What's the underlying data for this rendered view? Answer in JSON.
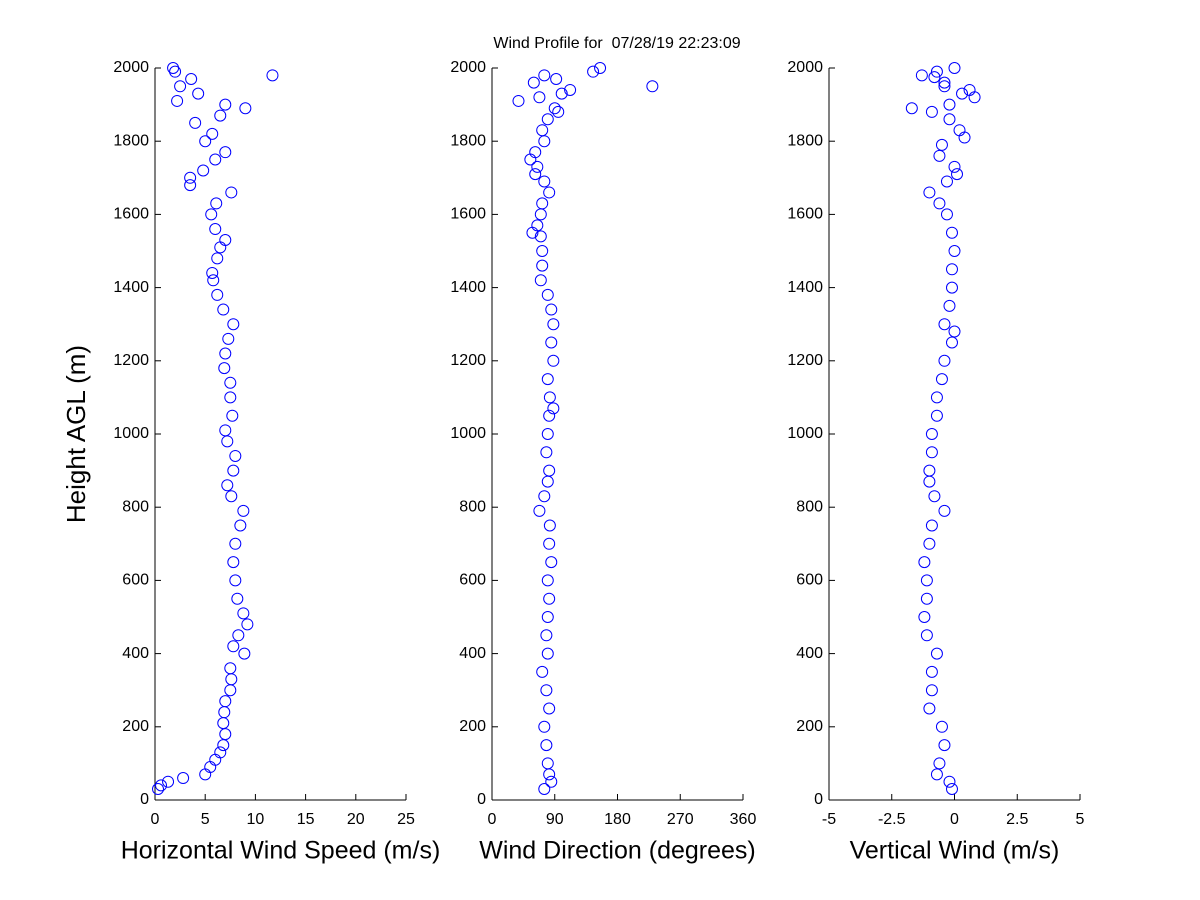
{
  "chart_data": [
    {
      "type": "scatter",
      "xlabel": "Horizontal Wind Speed (m/s)",
      "ylabel": "Height AGL (m)",
      "color": "#0000ff",
      "xlim": [
        0,
        25
      ],
      "xticks": [
        0,
        5,
        10,
        15,
        20,
        25
      ],
      "ylim": [
        0,
        2000
      ],
      "yticks": [
        0,
        200,
        400,
        600,
        800,
        1000,
        1200,
        1400,
        1600,
        1800,
        2000
      ],
      "x": [
        0.3,
        0.6,
        1.3,
        2.8,
        5,
        5.5,
        6,
        6.5,
        6.8,
        7,
        6.8,
        6.9,
        7,
        7.5,
        7.6,
        7.5,
        8.9,
        7.8,
        8.3,
        9.2,
        8.8,
        8.2,
        8,
        7.8,
        8,
        8.5,
        8.8,
        7.6,
        7.2,
        7.8,
        8,
        7.2,
        7,
        7.7,
        7.5,
        7.5,
        6.9,
        7,
        7.3,
        7.8,
        6.8,
        6.2,
        5.8,
        5.7,
        6.2,
        6.5,
        7,
        6,
        5.6,
        6.1,
        7.6,
        3.5,
        3.5,
        4.8,
        6,
        7,
        5,
        5.7,
        4,
        6.5,
        9,
        7,
        2.2,
        4.3,
        2.5,
        3.6,
        11.7,
        2,
        1.8
      ],
      "y": [
        30,
        40,
        50,
        60,
        70,
        90,
        110,
        130,
        150,
        180,
        210,
        240,
        270,
        300,
        330,
        360,
        400,
        420,
        450,
        480,
        510,
        550,
        600,
        650,
        700,
        750,
        790,
        830,
        860,
        900,
        940,
        980,
        1010,
        1050,
        1100,
        1140,
        1180,
        1220,
        1260,
        1300,
        1340,
        1380,
        1420,
        1440,
        1480,
        1510,
        1530,
        1560,
        1600,
        1630,
        1660,
        1680,
        1700,
        1720,
        1750,
        1770,
        1800,
        1820,
        1850,
        1870,
        1890,
        1900,
        1910,
        1930,
        1950,
        1970,
        1980,
        1990,
        2000
      ]
    },
    {
      "type": "scatter",
      "title": "Wind Profile for  07/28/19 22:23:09",
      "xlabel": "Wind Direction (degrees)",
      "color": "#0000ff",
      "xlim": [
        0,
        360
      ],
      "xticks": [
        0,
        90,
        180,
        270,
        360
      ],
      "ylim": [
        0,
        2000
      ],
      "yticks": [
        0,
        200,
        400,
        600,
        800,
        1000,
        1200,
        1400,
        1600,
        1800,
        2000
      ],
      "x": [
        75,
        85,
        82,
        80,
        78,
        75,
        82,
        78,
        72,
        80,
        78,
        80,
        82,
        80,
        85,
        82,
        83,
        68,
        75,
        80,
        82,
        78,
        80,
        82,
        88,
        83,
        80,
        88,
        85,
        88,
        85,
        80,
        70,
        72,
        72,
        70,
        58,
        65,
        70,
        72,
        82,
        75,
        62,
        65,
        55,
        62,
        75,
        72,
        80,
        95,
        90,
        38,
        68,
        100,
        112,
        230,
        60,
        92,
        75,
        145,
        155
      ],
      "y": [
        30,
        50,
        70,
        100,
        150,
        200,
        250,
        300,
        350,
        400,
        450,
        500,
        550,
        600,
        650,
        700,
        750,
        790,
        830,
        870,
        900,
        950,
        1000,
        1050,
        1070,
        1100,
        1150,
        1200,
        1250,
        1300,
        1340,
        1380,
        1420,
        1460,
        1500,
        1540,
        1550,
        1570,
        1600,
        1630,
        1660,
        1690,
        1710,
        1730,
        1750,
        1770,
        1800,
        1830,
        1860,
        1880,
        1890,
        1910,
        1920,
        1930,
        1940,
        1950,
        1960,
        1970,
        1980,
        1990,
        2000
      ]
    },
    {
      "type": "scatter",
      "xlabel": "Vertical Wind (m/s)",
      "color": "#0000ff",
      "xlim": [
        -5,
        5
      ],
      "xticks": [
        -5,
        -2.5,
        0,
        2.5,
        5
      ],
      "ylim": [
        0,
        2000
      ],
      "yticks": [
        0,
        200,
        400,
        600,
        800,
        1000,
        1200,
        1400,
        1600,
        1800,
        2000
      ],
      "x": [
        -0.1,
        -0.2,
        -0.7,
        -0.6,
        -0.4,
        -0.5,
        -1,
        -0.9,
        -0.9,
        -0.7,
        -1.1,
        -1.2,
        -1.1,
        -1.1,
        -1.2,
        -1,
        -0.9,
        -0.4,
        -0.8,
        -1,
        -1,
        -0.9,
        -0.9,
        -0.7,
        -0.7,
        -0.5,
        -0.4,
        -0.1,
        0,
        -0.4,
        -0.2,
        -0.1,
        -0.1,
        0,
        -0.1,
        -0.3,
        -0.6,
        -1,
        -0.3,
        0.1,
        0,
        -0.6,
        -0.5,
        0.4,
        0.2,
        -0.2,
        -0.9,
        -1.7,
        -0.2,
        0.8,
        0.3,
        0.6,
        -0.4,
        -0.4,
        -0.8,
        -1.3,
        -0.7,
        0
      ],
      "y": [
        30,
        50,
        70,
        100,
        150,
        200,
        250,
        300,
        350,
        400,
        450,
        500,
        550,
        600,
        650,
        700,
        750,
        790,
        830,
        870,
        900,
        950,
        1000,
        1050,
        1100,
        1150,
        1200,
        1250,
        1280,
        1300,
        1350,
        1400,
        1450,
        1500,
        1550,
        1600,
        1630,
        1660,
        1690,
        1710,
        1730,
        1760,
        1790,
        1810,
        1830,
        1860,
        1880,
        1890,
        1900,
        1920,
        1930,
        1940,
        1950,
        1960,
        1975,
        1980,
        1990,
        2000
      ]
    }
  ]
}
